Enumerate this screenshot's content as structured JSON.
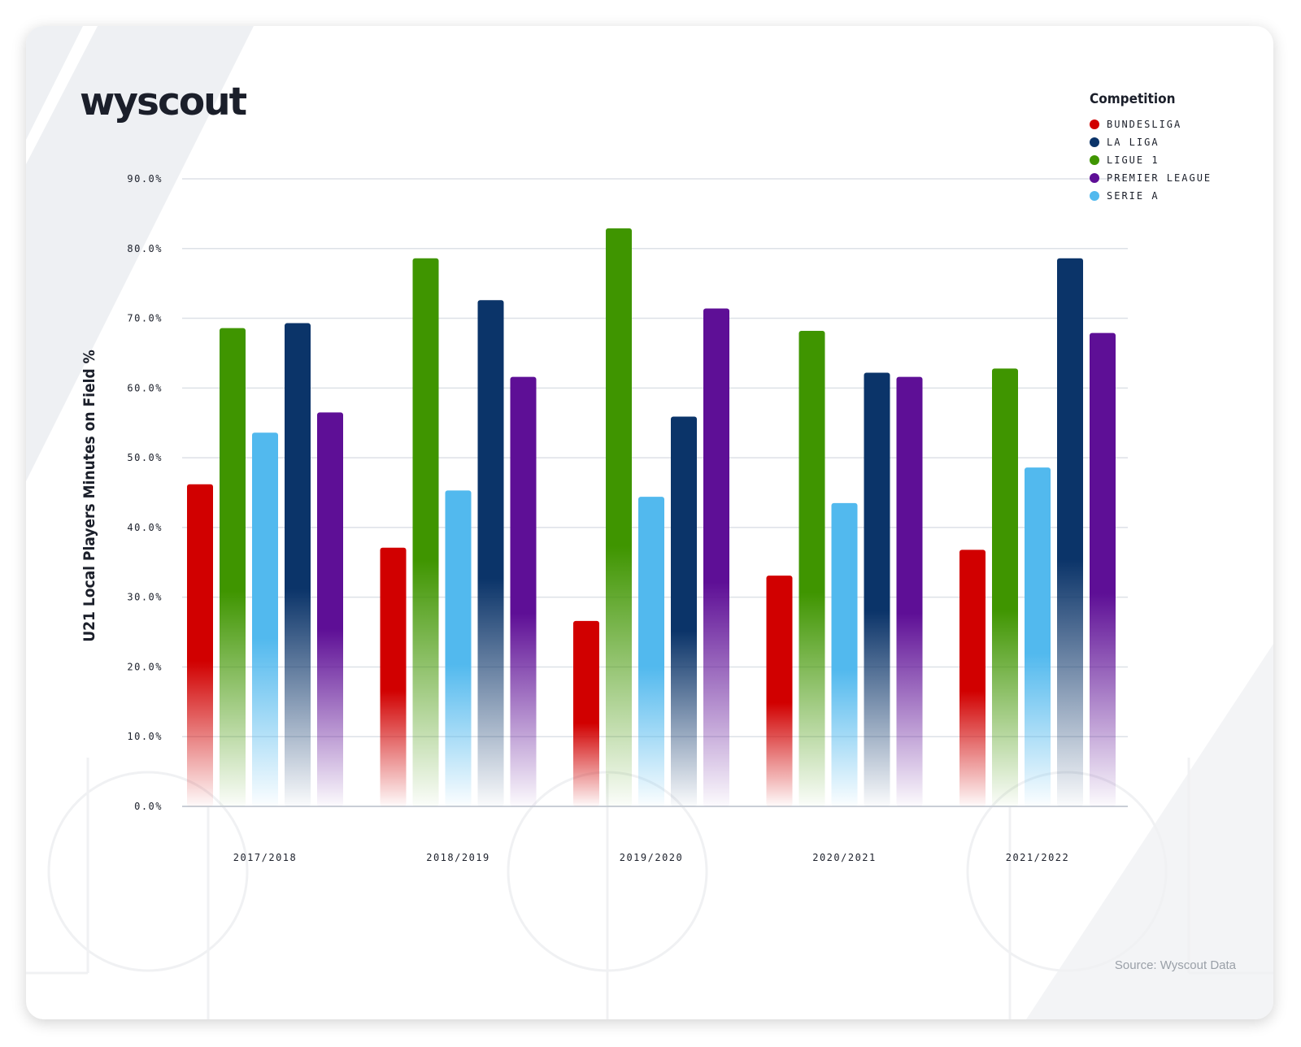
{
  "brand": {
    "logo_text": "wyscout"
  },
  "source_text": "Source: Wyscout Data",
  "legend": {
    "title": "Competition",
    "items": [
      {
        "label": "BUNDESLIGA",
        "color": "#d10000"
      },
      {
        "label": "LA LIGA",
        "color": "#0b3469"
      },
      {
        "label": "LIGUE 1",
        "color": "#3f9500"
      },
      {
        "label": "PREMIER LEAGUE",
        "color": "#5e0f96"
      },
      {
        "label": "SERIE A",
        "color": "#52b9ee"
      }
    ]
  },
  "chart_data": {
    "type": "bar",
    "title": "",
    "xlabel": "",
    "ylabel": "U21 Local Players Minutes on Field %",
    "ylim": [
      0,
      90
    ],
    "yticks": [
      "0.0%",
      "10.0%",
      "20.0%",
      "30.0%",
      "40.0%",
      "50.0%",
      "60.0%",
      "70.0%",
      "80.0%",
      "90.0%"
    ],
    "categories": [
      "2017/2018",
      "2018/2019",
      "2019/2020",
      "2020/2021",
      "2021/2022"
    ],
    "series": [
      {
        "name": "BUNDESLIGA",
        "color": "#d10000",
        "values": [
          46.2,
          37.1,
          26.6,
          33.1,
          36.8
        ]
      },
      {
        "name": "LIGUE 1",
        "color": "#3f9500",
        "values": [
          68.6,
          78.6,
          82.9,
          68.2,
          62.8
        ]
      },
      {
        "name": "SERIE A",
        "color": "#52b9ee",
        "values": [
          53.6,
          45.3,
          44.4,
          43.5,
          48.6
        ]
      },
      {
        "name": "LA LIGA",
        "color": "#0b3469",
        "values": [
          69.3,
          72.6,
          55.9,
          62.2,
          78.6
        ]
      },
      {
        "name": "PREMIER LEAGUE",
        "color": "#5e0f96",
        "values": [
          56.5,
          61.6,
          71.4,
          61.6,
          67.9
        ]
      }
    ]
  }
}
